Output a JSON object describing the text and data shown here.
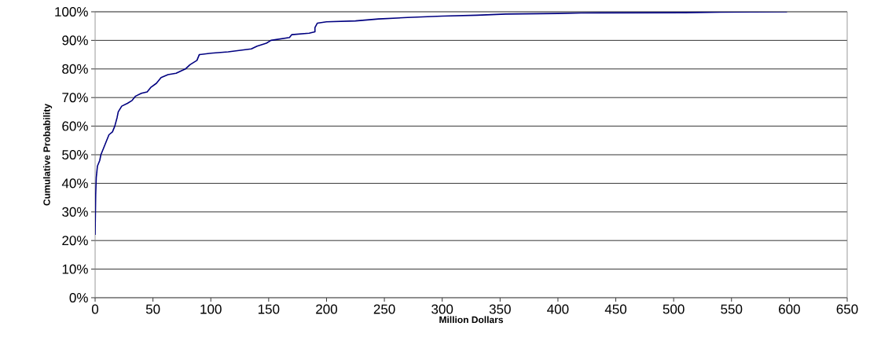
{
  "chart_data": {
    "type": "line",
    "xlabel": "Million Dollars",
    "ylabel": "Cumulative Probability",
    "x": [
      0,
      0.5,
      1,
      2,
      4,
      5,
      7,
      10,
      12,
      15,
      17,
      19,
      20,
      23,
      28,
      32,
      35,
      40,
      45,
      48,
      53,
      57,
      63,
      70,
      78,
      82,
      88,
      90,
      100,
      115,
      135,
      140,
      148,
      152,
      160,
      168,
      170,
      185,
      190,
      190,
      192,
      200,
      225,
      245,
      270,
      300,
      330,
      355,
      400,
      420,
      510,
      540,
      598
    ],
    "series": [
      {
        "color": "#000080",
        "values": [
          22,
          36,
          42,
          46,
          48,
          50,
          52,
          55,
          57,
          58,
          60,
          63,
          65,
          67,
          68,
          69,
          70.5,
          71.5,
          72,
          73.5,
          75,
          77,
          78,
          78.5,
          80,
          81.5,
          83,
          85,
          85.5,
          86,
          87,
          88,
          89,
          90,
          90.5,
          91,
          92,
          92.5,
          93,
          94.5,
          96,
          96.5,
          96.8,
          97.5,
          98,
          98.5,
          98.8,
          99.2,
          99.4,
          99.6,
          99.7,
          99.9,
          100
        ]
      }
    ],
    "xlim": [
      0,
      650
    ],
    "xticks": [
      0,
      50,
      100,
      150,
      200,
      250,
      300,
      350,
      400,
      450,
      500,
      550,
      600,
      650
    ],
    "ylim": [
      0,
      100
    ],
    "yticks": [
      {
        "value": 0,
        "label": "0%"
      },
      {
        "value": 10,
        "label": "10%"
      },
      {
        "value": 20,
        "label": "20%"
      },
      {
        "value": 30,
        "label": "30%"
      },
      {
        "value": 40,
        "label": "40%"
      },
      {
        "value": 50,
        "label": "50%"
      },
      {
        "value": 60,
        "label": "60%"
      },
      {
        "value": 70,
        "label": "70%"
      },
      {
        "value": 80,
        "label": "80%"
      },
      {
        "value": 90,
        "label": "90%"
      },
      {
        "value": 100,
        "label": "100%"
      }
    ],
    "grid": "y",
    "marker": "none",
    "line_style": "solid"
  }
}
